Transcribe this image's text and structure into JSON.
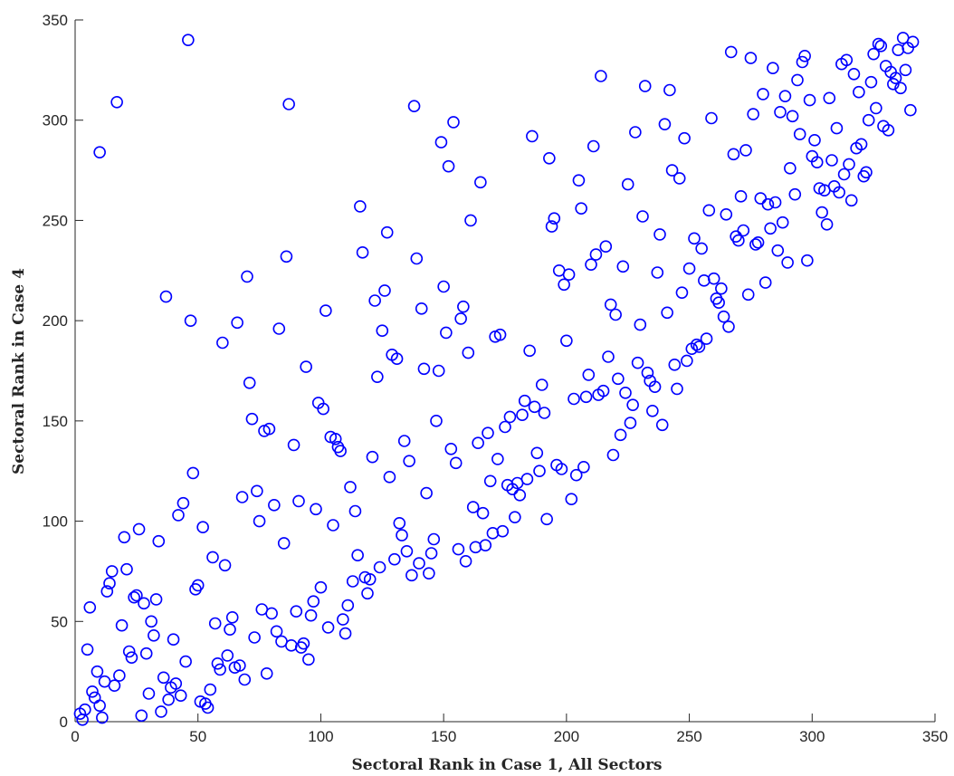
{
  "chart_data": {
    "type": "scatter",
    "title": "",
    "xlabel": "Sectoral Rank in Case 1, All Sectors",
    "ylabel": "Sectoral Rank in Case 4",
    "xlim": [
      0,
      350
    ],
    "ylim": [
      0,
      350
    ],
    "xticks": [
      0,
      50,
      100,
      150,
      200,
      250,
      300,
      350
    ],
    "yticks": [
      0,
      50,
      100,
      150,
      200,
      250,
      300,
      350
    ],
    "xtick_labels": [
      "0",
      "50",
      "100",
      "150",
      "200",
      "250",
      "300",
      "350"
    ],
    "ytick_labels": [
      "0",
      "50",
      "100",
      "150",
      "200",
      "250",
      "300",
      "350"
    ],
    "grid": false,
    "marker": "circle-open",
    "color": "#0000ff",
    "points": [
      [
        2,
        4
      ],
      [
        3,
        1
      ],
      [
        4,
        6
      ],
      [
        5,
        36
      ],
      [
        6,
        57
      ],
      [
        7,
        15
      ],
      [
        8,
        12
      ],
      [
        9,
        25
      ],
      [
        10,
        8
      ],
      [
        10,
        284
      ],
      [
        11,
        2
      ],
      [
        12,
        20
      ],
      [
        13,
        65
      ],
      [
        14,
        69
      ],
      [
        15,
        75
      ],
      [
        16,
        18
      ],
      [
        17,
        309
      ],
      [
        18,
        23
      ],
      [
        19,
        48
      ],
      [
        20,
        92
      ],
      [
        21,
        76
      ],
      [
        22,
        35
      ],
      [
        23,
        32
      ],
      [
        24,
        62
      ],
      [
        25,
        63
      ],
      [
        26,
        96
      ],
      [
        27,
        3
      ],
      [
        28,
        59
      ],
      [
        29,
        34
      ],
      [
        30,
        14
      ],
      [
        31,
        50
      ],
      [
        32,
        43
      ],
      [
        33,
        61
      ],
      [
        34,
        90
      ],
      [
        35,
        5
      ],
      [
        36,
        22
      ],
      [
        37,
        212
      ],
      [
        38,
        11
      ],
      [
        39,
        17
      ],
      [
        40,
        41
      ],
      [
        41,
        19
      ],
      [
        42,
        103
      ],
      [
        43,
        13
      ],
      [
        44,
        109
      ],
      [
        45,
        30
      ],
      [
        46,
        340
      ],
      [
        47,
        200
      ],
      [
        48,
        124
      ],
      [
        49,
        66
      ],
      [
        50,
        68
      ],
      [
        51,
        10
      ],
      [
        52,
        97
      ],
      [
        53,
        9
      ],
      [
        54,
        7
      ],
      [
        55,
        16
      ],
      [
        56,
        82
      ],
      [
        57,
        49
      ],
      [
        58,
        29
      ],
      [
        59,
        26
      ],
      [
        60,
        189
      ],
      [
        61,
        78
      ],
      [
        62,
        33
      ],
      [
        63,
        46
      ],
      [
        64,
        52
      ],
      [
        65,
        27
      ],
      [
        66,
        199
      ],
      [
        67,
        28
      ],
      [
        68,
        112
      ],
      [
        69,
        21
      ],
      [
        70,
        222
      ],
      [
        71,
        169
      ],
      [
        72,
        151
      ],
      [
        73,
        42
      ],
      [
        74,
        115
      ],
      [
        75,
        100
      ],
      [
        76,
        56
      ],
      [
        77,
        145
      ],
      [
        78,
        24
      ],
      [
        79,
        146
      ],
      [
        80,
        54
      ],
      [
        81,
        108
      ],
      [
        82,
        45
      ],
      [
        83,
        196
      ],
      [
        84,
        40
      ],
      [
        85,
        89
      ],
      [
        86,
        232
      ],
      [
        87,
        308
      ],
      [
        88,
        38
      ],
      [
        89,
        138
      ],
      [
        90,
        55
      ],
      [
        91,
        110
      ],
      [
        92,
        37
      ],
      [
        93,
        39
      ],
      [
        94,
        177
      ],
      [
        95,
        31
      ],
      [
        96,
        53
      ],
      [
        97,
        60
      ],
      [
        98,
        106
      ],
      [
        99,
        159
      ],
      [
        100,
        67
      ],
      [
        101,
        156
      ],
      [
        102,
        205
      ],
      [
        103,
        47
      ],
      [
        104,
        142
      ],
      [
        105,
        98
      ],
      [
        106,
        141
      ],
      [
        107,
        137
      ],
      [
        108,
        135
      ],
      [
        109,
        51
      ],
      [
        110,
        44
      ],
      [
        111,
        58
      ],
      [
        112,
        117
      ],
      [
        113,
        70
      ],
      [
        114,
        105
      ],
      [
        115,
        83
      ],
      [
        116,
        257
      ],
      [
        117,
        234
      ],
      [
        118,
        72
      ],
      [
        119,
        64
      ],
      [
        120,
        71
      ],
      [
        121,
        132
      ],
      [
        122,
        210
      ],
      [
        123,
        172
      ],
      [
        124,
        77
      ],
      [
        125,
        195
      ],
      [
        126,
        215
      ],
      [
        127,
        244
      ],
      [
        128,
        122
      ],
      [
        129,
        183
      ],
      [
        130,
        81
      ],
      [
        131,
        181
      ],
      [
        132,
        99
      ],
      [
        133,
        93
      ],
      [
        134,
        140
      ],
      [
        135,
        85
      ],
      [
        136,
        130
      ],
      [
        137,
        73
      ],
      [
        138,
        307
      ],
      [
        139,
        231
      ],
      [
        140,
        79
      ],
      [
        141,
        206
      ],
      [
        142,
        176
      ],
      [
        143,
        114
      ],
      [
        144,
        74
      ],
      [
        145,
        84
      ],
      [
        146,
        91
      ],
      [
        147,
        150
      ],
      [
        148,
        175
      ],
      [
        149,
        289
      ],
      [
        150,
        217
      ],
      [
        151,
        194
      ],
      [
        152,
        277
      ],
      [
        153,
        136
      ],
      [
        154,
        299
      ],
      [
        155,
        129
      ],
      [
        156,
        86
      ],
      [
        157,
        201
      ],
      [
        158,
        207
      ],
      [
        159,
        80
      ],
      [
        160,
        184
      ],
      [
        161,
        250
      ],
      [
        162,
        107
      ],
      [
        163,
        87
      ],
      [
        164,
        139
      ],
      [
        165,
        269
      ],
      [
        166,
        104
      ],
      [
        167,
        88
      ],
      [
        168,
        144
      ],
      [
        169,
        120
      ],
      [
        170,
        94
      ],
      [
        171,
        192
      ],
      [
        172,
        131
      ],
      [
        173,
        193
      ],
      [
        174,
        95
      ],
      [
        175,
        147
      ],
      [
        176,
        118
      ],
      [
        177,
        152
      ],
      [
        178,
        116
      ],
      [
        179,
        102
      ],
      [
        180,
        119
      ],
      [
        181,
        113
      ],
      [
        182,
        153
      ],
      [
        183,
        160
      ],
      [
        184,
        121
      ],
      [
        185,
        185
      ],
      [
        186,
        292
      ],
      [
        187,
        157
      ],
      [
        188,
        134
      ],
      [
        189,
        125
      ],
      [
        190,
        168
      ],
      [
        191,
        154
      ],
      [
        192,
        101
      ],
      [
        193,
        281
      ],
      [
        194,
        247
      ],
      [
        195,
        251
      ],
      [
        196,
        128
      ],
      [
        197,
        225
      ],
      [
        198,
        126
      ],
      [
        199,
        218
      ],
      [
        200,
        190
      ],
      [
        201,
        223
      ],
      [
        202,
        111
      ],
      [
        203,
        161
      ],
      [
        204,
        123
      ],
      [
        205,
        270
      ],
      [
        206,
        256
      ],
      [
        207,
        127
      ],
      [
        208,
        162
      ],
      [
        209,
        173
      ],
      [
        210,
        228
      ],
      [
        211,
        287
      ],
      [
        212,
        233
      ],
      [
        213,
        163
      ],
      [
        214,
        322
      ],
      [
        215,
        165
      ],
      [
        216,
        237
      ],
      [
        217,
        182
      ],
      [
        218,
        208
      ],
      [
        219,
        133
      ],
      [
        220,
        203
      ],
      [
        221,
        171
      ],
      [
        222,
        143
      ],
      [
        223,
        227
      ],
      [
        224,
        164
      ],
      [
        225,
        268
      ],
      [
        226,
        149
      ],
      [
        227,
        158
      ],
      [
        228,
        294
      ],
      [
        229,
        179
      ],
      [
        230,
        198
      ],
      [
        231,
        252
      ],
      [
        232,
        317
      ],
      [
        233,
        174
      ],
      [
        234,
        170
      ],
      [
        235,
        155
      ],
      [
        236,
        167
      ],
      [
        237,
        224
      ],
      [
        238,
        243
      ],
      [
        239,
        148
      ],
      [
        240,
        298
      ],
      [
        241,
        204
      ],
      [
        242,
        315
      ],
      [
        243,
        275
      ],
      [
        244,
        178
      ],
      [
        245,
        166
      ],
      [
        246,
        271
      ],
      [
        247,
        214
      ],
      [
        248,
        291
      ],
      [
        249,
        180
      ],
      [
        250,
        226
      ],
      [
        251,
        186
      ],
      [
        252,
        241
      ],
      [
        253,
        188
      ],
      [
        254,
        187
      ],
      [
        255,
        236
      ],
      [
        256,
        220
      ],
      [
        257,
        191
      ],
      [
        258,
        255
      ],
      [
        259,
        301
      ],
      [
        260,
        221
      ],
      [
        261,
        211
      ],
      [
        262,
        209
      ],
      [
        263,
        216
      ],
      [
        264,
        202
      ],
      [
        265,
        253
      ],
      [
        266,
        197
      ],
      [
        267,
        334
      ],
      [
        268,
        283
      ],
      [
        269,
        242
      ],
      [
        270,
        240
      ],
      [
        271,
        262
      ],
      [
        272,
        245
      ],
      [
        273,
        285
      ],
      [
        274,
        213
      ],
      [
        275,
        331
      ],
      [
        276,
        303
      ],
      [
        277,
        238
      ],
      [
        278,
        239
      ],
      [
        279,
        261
      ],
      [
        280,
        313
      ],
      [
        281,
        219
      ],
      [
        282,
        258
      ],
      [
        283,
        246
      ],
      [
        284,
        326
      ],
      [
        285,
        259
      ],
      [
        286,
        235
      ],
      [
        287,
        304
      ],
      [
        288,
        249
      ],
      [
        289,
        312
      ],
      [
        290,
        229
      ],
      [
        291,
        276
      ],
      [
        292,
        302
      ],
      [
        293,
        263
      ],
      [
        294,
        320
      ],
      [
        295,
        293
      ],
      [
        296,
        329
      ],
      [
        297,
        332
      ],
      [
        298,
        230
      ],
      [
        299,
        310
      ],
      [
        300,
        282
      ],
      [
        301,
        290
      ],
      [
        302,
        279
      ],
      [
        303,
        266
      ],
      [
        304,
        254
      ],
      [
        305,
        265
      ],
      [
        306,
        248
      ],
      [
        307,
        311
      ],
      [
        308,
        280
      ],
      [
        309,
        267
      ],
      [
        310,
        296
      ],
      [
        311,
        264
      ],
      [
        312,
        328
      ],
      [
        313,
        273
      ],
      [
        314,
        330
      ],
      [
        315,
        278
      ],
      [
        316,
        260
      ],
      [
        317,
        323
      ],
      [
        318,
        286
      ],
      [
        319,
        314
      ],
      [
        320,
        288
      ],
      [
        321,
        272
      ],
      [
        322,
        274
      ],
      [
        323,
        300
      ],
      [
        324,
        319
      ],
      [
        325,
        333
      ],
      [
        326,
        306
      ],
      [
        327,
        338
      ],
      [
        328,
        337
      ],
      [
        329,
        297
      ],
      [
        330,
        327
      ],
      [
        331,
        295
      ],
      [
        332,
        324
      ],
      [
        333,
        318
      ],
      [
        334,
        321
      ],
      [
        335,
        335
      ],
      [
        336,
        316
      ],
      [
        337,
        341
      ],
      [
        338,
        325
      ],
      [
        339,
        336
      ],
      [
        340,
        305
      ],
      [
        341,
        339
      ]
    ]
  }
}
